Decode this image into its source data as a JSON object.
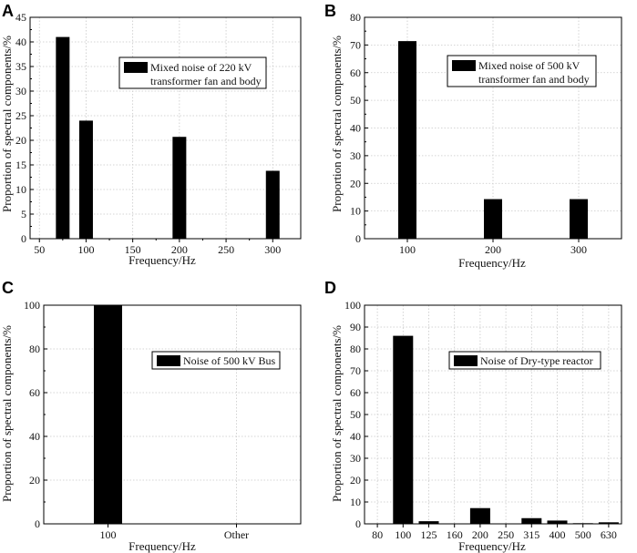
{
  "chart_data": [
    {
      "panel": "A",
      "type": "bar",
      "x_scale": "linear",
      "xlim": [
        40,
        330
      ],
      "xticks": [
        50,
        100,
        150,
        200,
        250,
        300
      ],
      "x": [
        75,
        100,
        200,
        300
      ],
      "values": [
        41,
        24,
        20.7,
        13.8
      ],
      "ylim": [
        0,
        45
      ],
      "yticks": [
        0,
        5,
        10,
        15,
        20,
        25,
        30,
        35,
        40,
        45
      ],
      "xlabel": "Frequency/Hz",
      "ylabel": "Proportion of spectral components/%",
      "legend": [
        "Mixed noise of 220 kV",
        "transformer fan and body"
      ],
      "grid": true
    },
    {
      "panel": "B",
      "type": "bar",
      "x_scale": "category",
      "categories": [
        "100",
        "200",
        "300"
      ],
      "values": [
        71.4,
        14.3,
        14.3
      ],
      "ylim": [
        0,
        80
      ],
      "yticks": [
        0,
        10,
        20,
        30,
        40,
        50,
        60,
        70,
        80
      ],
      "xlabel": "Frequency/Hz",
      "ylabel": "Proportion of spectral components/%",
      "legend": [
        "Mixed noise of 500 kV",
        "transformer fan and body"
      ],
      "grid": true
    },
    {
      "panel": "C",
      "type": "bar",
      "x_scale": "category",
      "categories": [
        "100",
        "Other"
      ],
      "values": [
        100,
        0
      ],
      "ylim": [
        0,
        100
      ],
      "yticks": [
        0,
        20,
        40,
        60,
        80,
        100
      ],
      "xlabel": "Frequency/Hz",
      "ylabel": "Proportion of spectral components/%",
      "legend": [
        "Noise of 500 kV Bus"
      ],
      "grid": true
    },
    {
      "panel": "D",
      "type": "bar",
      "x_scale": "category",
      "categories": [
        "80",
        "100",
        "125",
        "160",
        "200",
        "250",
        "315",
        "400",
        "500",
        "630"
      ],
      "values": [
        0,
        86,
        1.2,
        0,
        7.2,
        0,
        2.6,
        1.5,
        0.3,
        0.7
      ],
      "ylim": [
        0,
        100
      ],
      "yticks": [
        0,
        10,
        20,
        30,
        40,
        50,
        60,
        70,
        80,
        90,
        100
      ],
      "xlabel": "Frequency/Hz",
      "ylabel": "Proportion of spectral components/%",
      "legend": [
        "Noise of Dry-type reactor"
      ],
      "grid": true
    }
  ]
}
